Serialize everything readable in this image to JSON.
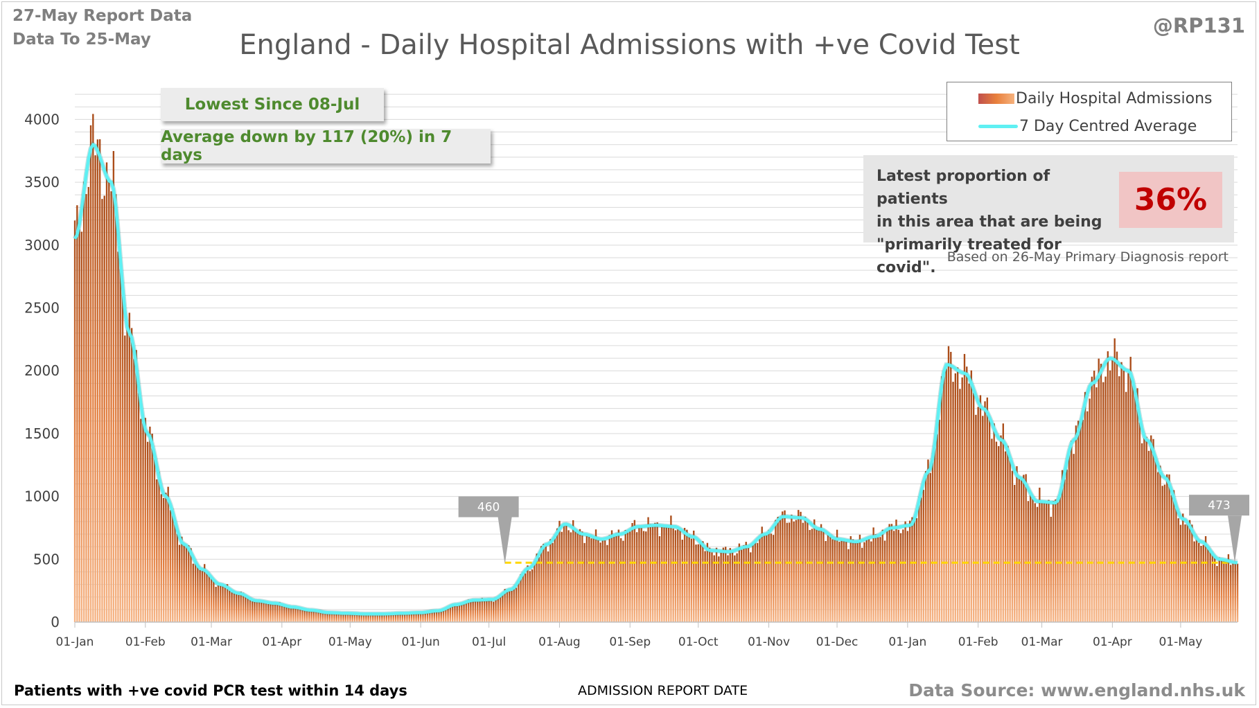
{
  "header": {
    "report_date": "27-May Report Data",
    "data_to": "Data To 25-May",
    "handle": "@RP131"
  },
  "footer": {
    "left": "Patients with +ve covid PCR test within 14 days",
    "center": "ADMISSION REPORT DATE",
    "right": "Data Source: www.england.nhs.uk"
  },
  "annotations": {
    "lowest": "Lowest Since 08-Jul",
    "average_change": "Average down by 117 (20%) in 7 days"
  },
  "proportion_panel": {
    "text_lines": [
      "Latest proportion of patients",
      "in this area that are being",
      "\"primarily treated for covid\"."
    ],
    "value": "36%",
    "note": "Based on 26-May Primary Diagnosis report"
  },
  "colors": {
    "bar_dark": "#b5531c",
    "bar_light": "#f3a46c",
    "average_line": "#5ff0f3",
    "reference_line": "#ffd700",
    "callout": "#a6a6a6",
    "gridline": "#d9d9d9",
    "value_highlight": "#c00000",
    "annotation_text": "#4e8a2e"
  },
  "chart_data": {
    "type": "bar",
    "title": "England - Daily Hospital Admissions with +ve Covid Test",
    "xlabel": "ADMISSION REPORT DATE",
    "ylabel": "",
    "ylim": [
      0,
      4300
    ],
    "yticks": [
      0,
      500,
      1000,
      1500,
      2000,
      2500,
      3000,
      3500,
      4000
    ],
    "grid": true,
    "legend_position": "top-right",
    "legend": [
      "Daily Hospital Admissions",
      "7 Day Centred Average"
    ],
    "x_tick_labels": [
      "01-Jan",
      "01-Feb",
      "01-Mar",
      "01-Apr",
      "01-May",
      "01-Jun",
      "01-Jul",
      "01-Aug",
      "01-Sep",
      "01-Oct",
      "01-Nov",
      "01-Dec",
      "01-Jan",
      "01-Feb",
      "01-Mar",
      "01-Apr",
      "01-May"
    ],
    "x_start": "01-Jan",
    "x_end": "25-May",
    "series": [
      {
        "name": "Daily Hospital Admissions",
        "kind": "bar",
        "monthly_values": [
          3050,
          3800,
          3500,
          2300,
          1500,
          1000,
          620,
          420,
          300,
          230,
          170,
          150,
          120,
          95,
          75,
          70,
          65,
          65,
          70,
          75,
          90,
          140,
          175,
          180,
          260,
          430,
          620,
          780,
          700,
          660,
          700,
          760,
          770,
          760,
          680,
          570,
          560,
          600,
          700,
          840,
          830,
          740,
          660,
          640,
          680,
          750,
          770,
          1200,
          2050,
          1980,
          1700,
          1450,
          1150,
          960,
          950,
          1450,
          1900,
          2100,
          2000,
          1450,
          1150,
          820,
          640,
          500,
          473
        ]
      },
      {
        "name": "7 Day Centred Average",
        "kind": "line",
        "monthly_values": [
          3050,
          3800,
          3500,
          2300,
          1500,
          1000,
          620,
          420,
          300,
          230,
          170,
          150,
          120,
          95,
          75,
          70,
          65,
          65,
          70,
          75,
          90,
          140,
          175,
          180,
          260,
          430,
          620,
          780,
          700,
          660,
          700,
          760,
          770,
          760,
          680,
          570,
          560,
          600,
          700,
          840,
          830,
          740,
          660,
          640,
          680,
          750,
          770,
          1200,
          2050,
          1980,
          1700,
          1450,
          1150,
          960,
          950,
          1450,
          1900,
          2100,
          2000,
          1450,
          1150,
          820,
          640,
          500,
          473
        ]
      }
    ],
    "callouts": [
      {
        "label": "460",
        "date": "08-Jul",
        "value": 460
      },
      {
        "label": "473",
        "date": "25-May",
        "value": 473
      }
    ],
    "reference_line": {
      "value": 473,
      "from": "08-Jul",
      "to": "25-May"
    }
  }
}
